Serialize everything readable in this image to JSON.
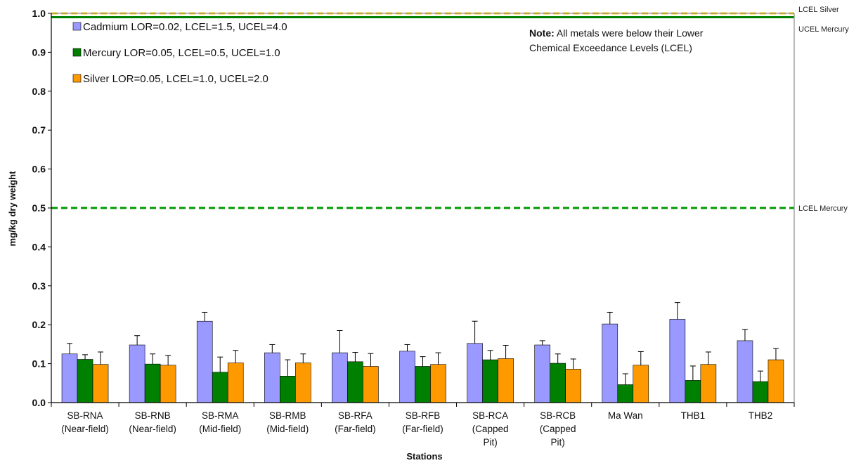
{
  "chart_data": {
    "type": "bar",
    "xlabel": "Stations",
    "ylabel": "mg/kg dry weight",
    "ylim": [
      0,
      1.0
    ],
    "yticks": [
      "0.0",
      "0.1",
      "0.2",
      "0.3",
      "0.4",
      "0.5",
      "0.6",
      "0.7",
      "0.8",
      "0.9",
      "1.0"
    ],
    "grid": false,
    "legend_position": "top-left",
    "categories": [
      [
        "SB-RNA",
        "(Near-field)"
      ],
      [
        "SB-RNB",
        "(Near-field)"
      ],
      [
        "SB-RMA",
        "(Mid-field)"
      ],
      [
        "SB-RMB",
        "(Mid-field)"
      ],
      [
        "SB-RFA",
        "(Far-field)"
      ],
      [
        "SB-RFB",
        "(Far-field)"
      ],
      [
        "SB-RCA",
        "(Capped",
        "Pit)"
      ],
      [
        "SB-RCB",
        "(Capped",
        "Pit)"
      ],
      [
        "Ma Wan"
      ],
      [
        "THB1"
      ],
      [
        "THB2"
      ]
    ],
    "series": [
      {
        "name": "Cadmium LOR=0.02, LCEL=1.5, UCEL=4.0",
        "color": "#9999ff",
        "values": [
          0.125,
          0.148,
          0.209,
          0.128,
          0.128,
          0.132,
          0.152,
          0.148,
          0.202,
          0.214,
          0.159
        ],
        "errors": [
          0.027,
          0.024,
          0.023,
          0.021,
          0.057,
          0.017,
          0.057,
          0.011,
          0.03,
          0.043,
          0.029
        ]
      },
      {
        "name": "Mercury LOR=0.05, LCEL=0.5, UCEL=1.0",
        "color": "#008000",
        "values": [
          0.111,
          0.099,
          0.078,
          0.068,
          0.105,
          0.093,
          0.11,
          0.101,
          0.046,
          0.057,
          0.054
        ],
        "errors": [
          0.012,
          0.026,
          0.039,
          0.042,
          0.024,
          0.025,
          0.024,
          0.024,
          0.028,
          0.037,
          0.027
        ]
      },
      {
        "name": "Silver LOR=0.05, LCEL=1.0, UCEL=2.0",
        "color": "#ff9900",
        "values": [
          0.098,
          0.096,
          0.102,
          0.102,
          0.093,
          0.098,
          0.113,
          0.086,
          0.096,
          0.098,
          0.11
        ],
        "errors": [
          0.032,
          0.025,
          0.032,
          0.023,
          0.033,
          0.03,
          0.034,
          0.026,
          0.035,
          0.032,
          0.029
        ]
      }
    ],
    "reference_lines": [
      {
        "label": "LCEL Silver",
        "value": 1.0,
        "color": "#ffcc00",
        "style": "dashed"
      },
      {
        "label": "UCEL Mercury",
        "value": 0.99,
        "color": "#008000",
        "style": "solid"
      },
      {
        "label": "LCEL Mercury",
        "value": 0.5,
        "color": "#009900",
        "style": "dashed"
      }
    ],
    "note": {
      "bold": "Note:",
      "line1": "All metals were below their Lower",
      "line2": "Chemical Exceedance Levels (LCEL)"
    }
  }
}
